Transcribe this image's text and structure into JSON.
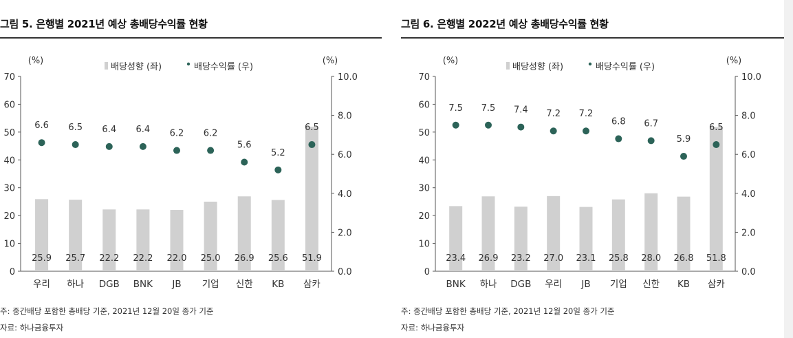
{
  "panels": [
    {
      "title": "그림 5. 은행별 2021년 예상 총배당수익률 현황",
      "note": "주: 중간배당 포함한 총배당 기준, 2021년 12월 20일 종가 기준",
      "source": "자료: 하나금융투자"
    },
    {
      "title": "그림 6. 은행별 2022년 예상 총배당수익률 현황",
      "note": "주: 중간배당 포함한 총배당 기준, 2021년 12월 20일 종가 기준",
      "source": "자료: 하나금융투자"
    }
  ],
  "chart_data": [
    {
      "type": "bar",
      "title": "그림 5. 은행별 2021년 예상 총배당수익률 현황",
      "categories": [
        "우리",
        "하나",
        "DGB",
        "BNK",
        "JB",
        "기업",
        "신한",
        "KB",
        "삼카"
      ],
      "left_axis_unit": "(%)",
      "right_axis_unit": "(%)",
      "ylim_left": [
        0,
        70
      ],
      "ylim_right": [
        0.0,
        10.0
      ],
      "left_ticks": [
        "0",
        "10",
        "20",
        "30",
        "40",
        "50",
        "60",
        "70"
      ],
      "right_ticks": [
        "0.0",
        "2.0",
        "4.0",
        "6.0",
        "8.0",
        "10.0"
      ],
      "legend": {
        "bar": "배당성향 (좌)",
        "dot": "배당수익률 (우)",
        "position": "top"
      },
      "series": [
        {
          "name": "배당성향 (좌)",
          "type": "bar",
          "axis": "left",
          "values": [
            25.9,
            25.7,
            22.2,
            22.2,
            22.0,
            25.0,
            26.9,
            25.6,
            51.9
          ],
          "labels": [
            "25.9",
            "25.7",
            "22.2",
            "22.2",
            "22.0",
            "25.0",
            "26.9",
            "25.6",
            "51.9"
          ]
        },
        {
          "name": "배당수익률 (우)",
          "type": "scatter",
          "axis": "right",
          "values": [
            6.6,
            6.5,
            6.4,
            6.4,
            6.2,
            6.2,
            5.6,
            5.2,
            6.5
          ],
          "labels": [
            "6.6",
            "6.5",
            "6.4",
            "6.4",
            "6.2",
            "6.2",
            "5.6",
            "5.2",
            "6.5"
          ]
        }
      ],
      "colors": {
        "bar": "#d0d0d0",
        "dot": "#2c6358"
      }
    },
    {
      "type": "bar",
      "title": "그림 6. 은행별 2022년 예상 총배당수익률 현황",
      "categories": [
        "BNK",
        "하나",
        "DGB",
        "우리",
        "JB",
        "기업",
        "신한",
        "KB",
        "삼카"
      ],
      "left_axis_unit": "(%)",
      "right_axis_unit": "(%)",
      "ylim_left": [
        0,
        70
      ],
      "ylim_right": [
        0.0,
        10.0
      ],
      "left_ticks": [
        "0",
        "10",
        "20",
        "30",
        "40",
        "50",
        "60",
        "70"
      ],
      "right_ticks": [
        "0.0",
        "2.0",
        "4.0",
        "6.0",
        "8.0",
        "10.0"
      ],
      "legend": {
        "bar": "배당성향 (좌)",
        "dot": "배당수익률 (우)",
        "position": "top"
      },
      "series": [
        {
          "name": "배당성향 (좌)",
          "type": "bar",
          "axis": "left",
          "values": [
            23.4,
            26.9,
            23.2,
            27.0,
            23.1,
            25.8,
            28.0,
            26.8,
            51.8
          ],
          "labels": [
            "23.4",
            "26.9",
            "23.2",
            "27.0",
            "23.1",
            "25.8",
            "28.0",
            "26.8",
            "51.8"
          ]
        },
        {
          "name": "배당수익률 (우)",
          "type": "scatter",
          "axis": "right",
          "values": [
            7.5,
            7.5,
            7.4,
            7.2,
            7.2,
            6.8,
            6.7,
            5.9,
            6.5
          ],
          "labels": [
            "7.5",
            "7.5",
            "7.4",
            "7.2",
            "7.2",
            "6.8",
            "6.7",
            "5.9",
            "6.5"
          ]
        }
      ],
      "colors": {
        "bar": "#d0d0d0",
        "dot": "#2c6358"
      }
    }
  ]
}
